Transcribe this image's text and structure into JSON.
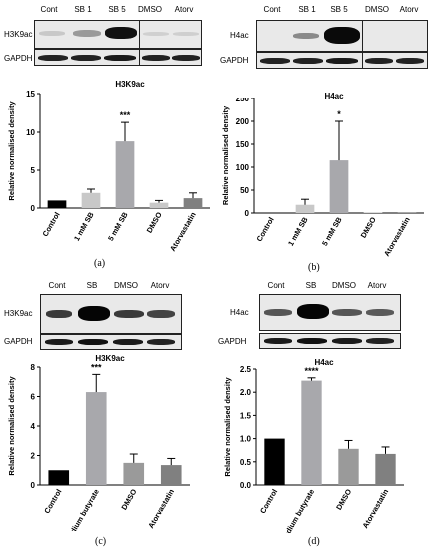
{
  "colors": {
    "black": "#000000",
    "light": "#c8c8c8",
    "mid": "#a8a8ac",
    "dark": "#808080",
    "midgray": "#9a9a9a"
  },
  "panels": [
    {
      "letter": "(a)",
      "blot": {
        "lanes": [
          "Cont",
          "SB 1",
          "SB 5",
          "DMSO",
          "Atorv"
        ],
        "top_label": "H3K9ac",
        "bottom_label": "GAPDH",
        "intensity": [
          0.15,
          0.35,
          1.0,
          0.1,
          0.12
        ]
      },
      "chart_data": {
        "type": "bar",
        "title": "H3K9ac",
        "ylabel": "Relative normalised density",
        "categories": [
          "Control",
          "1 mM SB",
          "5 mM SB",
          "DMSO",
          "Atorvastatin"
        ],
        "values": [
          1.0,
          2.0,
          8.8,
          0.7,
          1.3
        ],
        "errors": [
          0,
          0.5,
          2.5,
          0.3,
          0.7
        ],
        "ylim": [
          0,
          15
        ],
        "yticks": [
          "0",
          "5",
          "10",
          "15"
        ],
        "yticks_num": [
          0,
          5,
          10,
          15
        ],
        "significance": {
          "index": 2,
          "label": "***"
        }
      }
    },
    {
      "letter": "(b)",
      "blot": {
        "lanes": [
          "Cont",
          "SB 1",
          "SB 5",
          "DMSO",
          "Atorv"
        ],
        "top_label": "H4ac",
        "bottom_label": "GAPDH",
        "intensity": [
          0.0,
          0.45,
          1.0,
          0.0,
          0.0
        ]
      },
      "chart_data": {
        "type": "bar",
        "title": "H4ac",
        "ylabel": "Relative normalised density",
        "categories": [
          "Control",
          "1 mM SB",
          "5 mM SB",
          "DMSO",
          "Atorvastatin"
        ],
        "values": [
          1.0,
          18,
          115,
          1.0,
          1.5
        ],
        "errors": [
          0,
          12,
          85,
          0,
          0
        ],
        "ylim": [
          0,
          250
        ],
        "yticks": [
          "0",
          "50",
          "100",
          "150",
          "200",
          "250"
        ],
        "yticks_num": [
          0,
          50,
          100,
          150,
          200,
          250
        ],
        "significance": {
          "index": 2,
          "label": "*"
        }
      }
    },
    {
      "letter": "(c)",
      "blot": {
        "lanes": [
          "Cont",
          "SB",
          "DMSO",
          "Atorv"
        ],
        "top_label": "H3K9ac",
        "bottom_label": "GAPDH",
        "intensity": [
          0.55,
          1.0,
          0.55,
          0.5
        ]
      },
      "chart_data": {
        "type": "bar",
        "title": "H3K9ac",
        "ylabel": "Relative normalised density",
        "categories": [
          "Control",
          "Sodium butyrate",
          "DMSO",
          "Atorvastatin"
        ],
        "values": [
          1.0,
          6.3,
          1.5,
          1.35
        ],
        "errors": [
          0,
          1.2,
          0.6,
          0.45
        ],
        "ylim": [
          0,
          8
        ],
        "yticks": [
          "0",
          "2",
          "4",
          "6",
          "8"
        ],
        "yticks_num": [
          0,
          2,
          4,
          6,
          8
        ],
        "significance": {
          "index": 1,
          "label": "***"
        }
      }
    },
    {
      "letter": "(d)",
      "blot": {
        "lanes": [
          "Cont",
          "SB",
          "DMSO",
          "Atorv"
        ],
        "top_label": "H4ac",
        "bottom_label": "GAPDH",
        "intensity": [
          0.45,
          1.0,
          0.45,
          0.4
        ]
      },
      "chart_data": {
        "type": "bar",
        "title": "H4ac",
        "ylabel": "Relative normalised density",
        "categories": [
          "Control",
          "Sodium butyrate",
          "DMSO",
          "Atorvastatin"
        ],
        "values": [
          1.0,
          2.25,
          0.78,
          0.67
        ],
        "errors": [
          0,
          0.06,
          0.18,
          0.15
        ],
        "ylim": [
          0,
          2.5
        ],
        "yticks": [
          "0.0",
          "0.5",
          "1.0",
          "1.5",
          "2.0",
          "2.5"
        ],
        "yticks_num": [
          0,
          0.5,
          1.0,
          1.5,
          2.0,
          2.5
        ],
        "significance": {
          "index": 1,
          "label": "****"
        }
      }
    }
  ]
}
